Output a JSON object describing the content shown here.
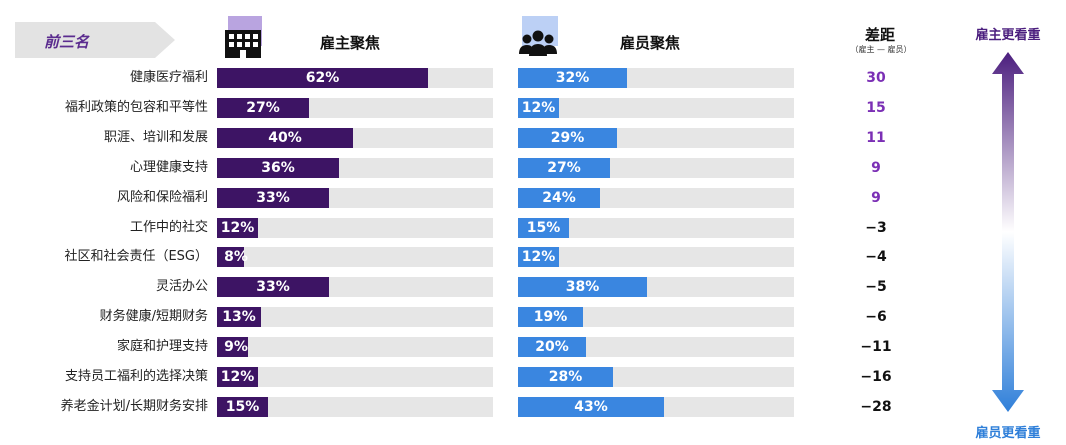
{
  "header": {
    "tag": "前三名",
    "employer_title": "雇主聚焦",
    "employee_title": "雇员聚焦",
    "gap_title": "差距",
    "gap_subtitle": "（雇主 — 雇员）",
    "arrow_top_label": "雇主更看重",
    "arrow_bottom_label": "雇员更看重"
  },
  "colors": {
    "employer_bar": "#3d1464",
    "employee_bar": "#3a86e0",
    "gap_positive": "#7b2fb5",
    "gap_negative": "#111111"
  },
  "icons": {
    "employer": "building-icon",
    "employee": "people-icon"
  },
  "chart_data": {
    "type": "bar",
    "orientation": "horizontal",
    "categories": [
      "健康医疗福利",
      "福利政策的包容和平等性",
      "职涯、培训和发展",
      "心理健康支持",
      "风险和保险福利",
      "工作中的社交",
      "社区和社会责任（ESG）",
      "灵活办公",
      "财务健康/短期财务",
      "家庭和护理支持",
      "支持员工福利的选择决策",
      "养老金计划/长期财务安排"
    ],
    "series": [
      {
        "name": "雇主聚焦",
        "values": [
          62,
          27,
          40,
          36,
          33,
          12,
          8,
          33,
          13,
          9,
          12,
          15
        ],
        "labels": [
          "62%",
          "27%",
          "40%",
          "36%",
          "33%",
          "12%",
          "8%",
          "33%",
          "13%",
          "9%",
          "12%",
          "15%"
        ]
      },
      {
        "name": "雇员聚焦",
        "values": [
          32,
          12,
          29,
          27,
          24,
          15,
          12,
          38,
          19,
          20,
          28,
          43
        ],
        "labels": [
          "32%",
          "12%",
          "29%",
          "27%",
          "24%",
          "15%",
          "12%",
          "38%",
          "19%",
          "20%",
          "28%",
          "43%"
        ]
      }
    ],
    "gap": [
      "30",
      "15",
      "11",
      "9",
      "9",
      "−3",
      "−4",
      "−5",
      "−6",
      "−11",
      "−16",
      "−28"
    ],
    "xlim": [
      0,
      80
    ]
  }
}
